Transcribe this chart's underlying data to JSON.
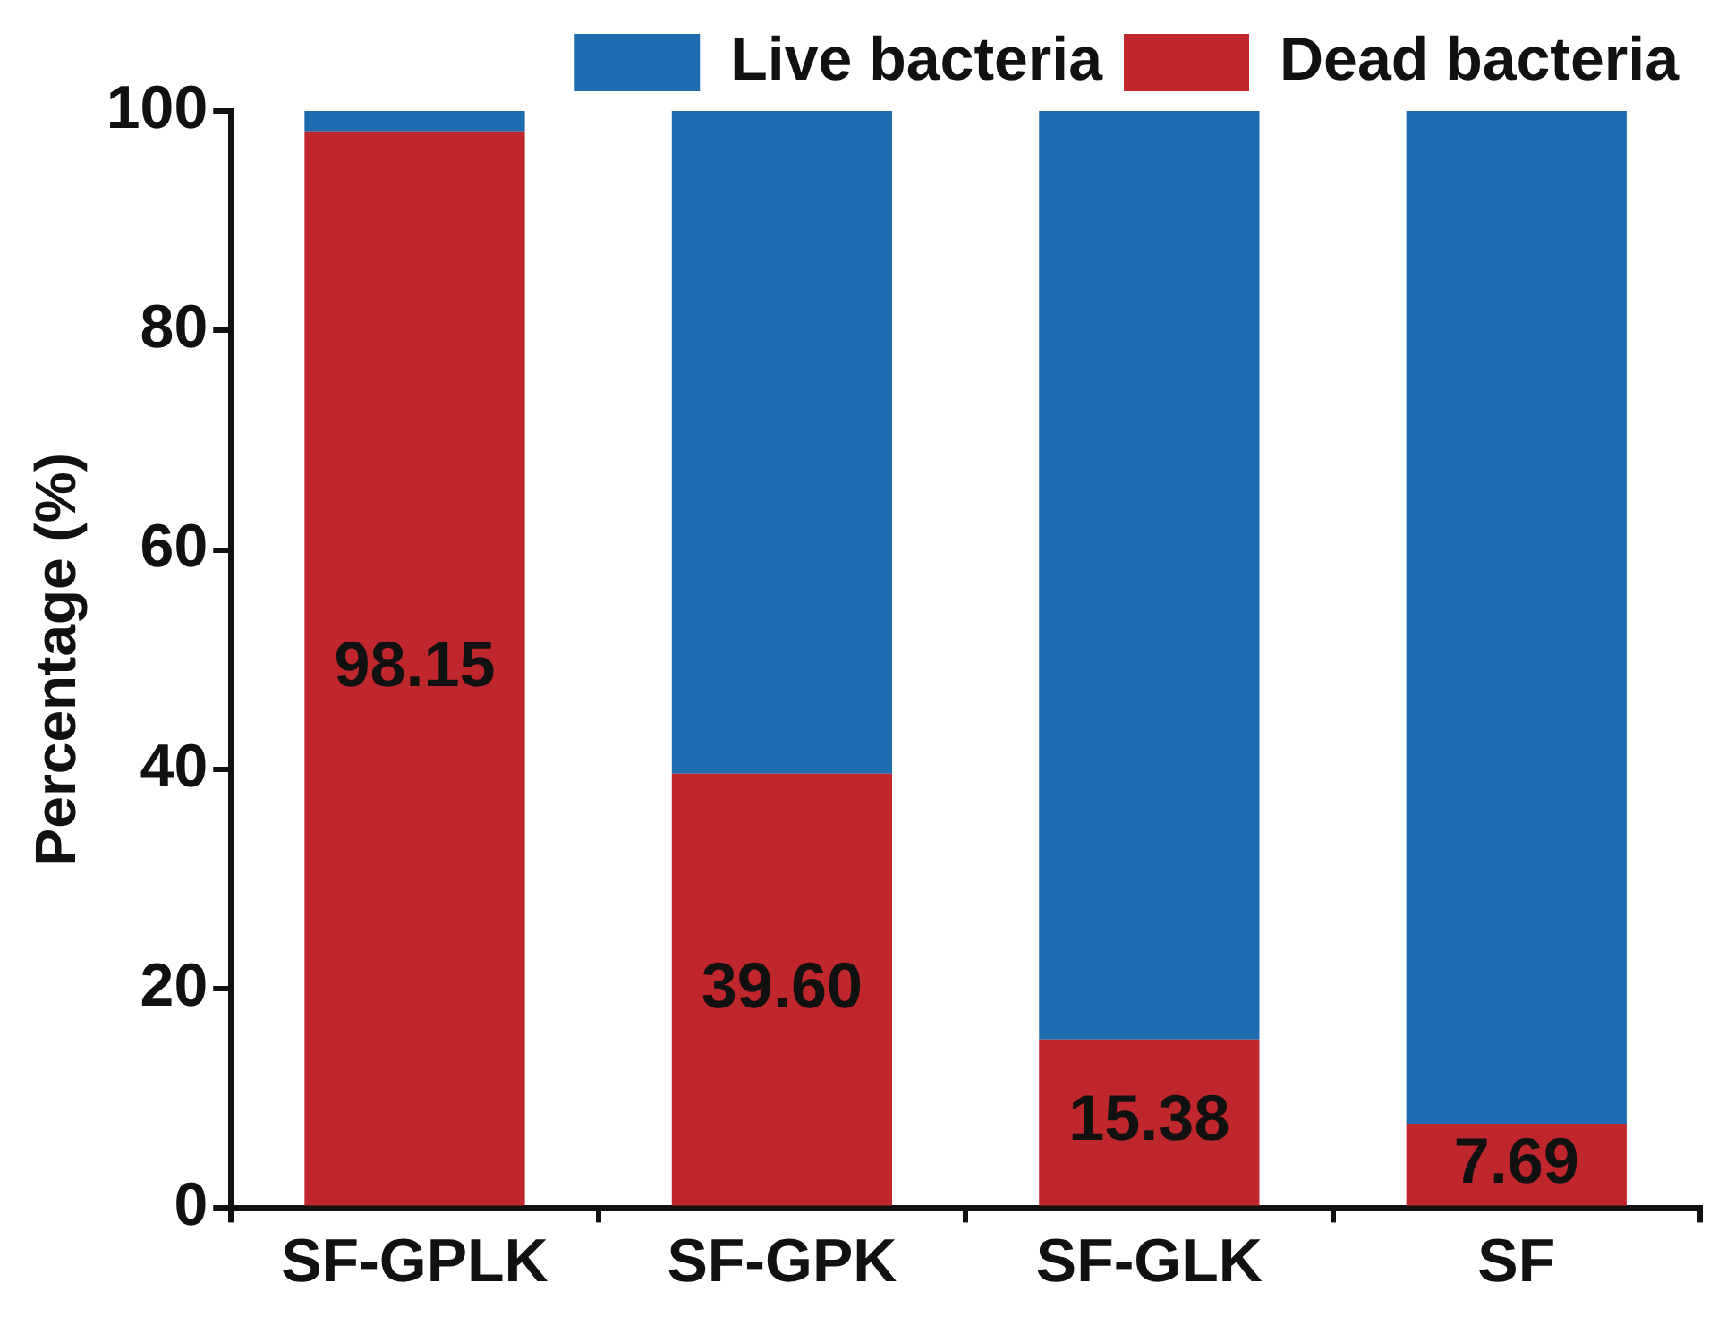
{
  "chart_data": {
    "type": "bar",
    "stacked": true,
    "ylabel": "Percentage (%)",
    "categories": [
      "SF-GPLK",
      "SF-GPK",
      "SF-GLK",
      "SF"
    ],
    "series": [
      {
        "name": "Dead bacteria",
        "color": "#c0272d",
        "values": [
          98.15,
          39.6,
          15.38,
          7.69
        ],
        "value_labels": [
          "98.15",
          "39.60",
          "15.38",
          "7.69"
        ]
      },
      {
        "name": "Live bacteria",
        "color": "#1f6db0",
        "values": [
          1.85,
          60.4,
          84.62,
          92.31
        ]
      }
    ],
    "ylim": [
      0,
      100
    ],
    "yticks": [
      0,
      20,
      40,
      60,
      80,
      100
    ],
    "grid": false,
    "legend": "top right"
  }
}
